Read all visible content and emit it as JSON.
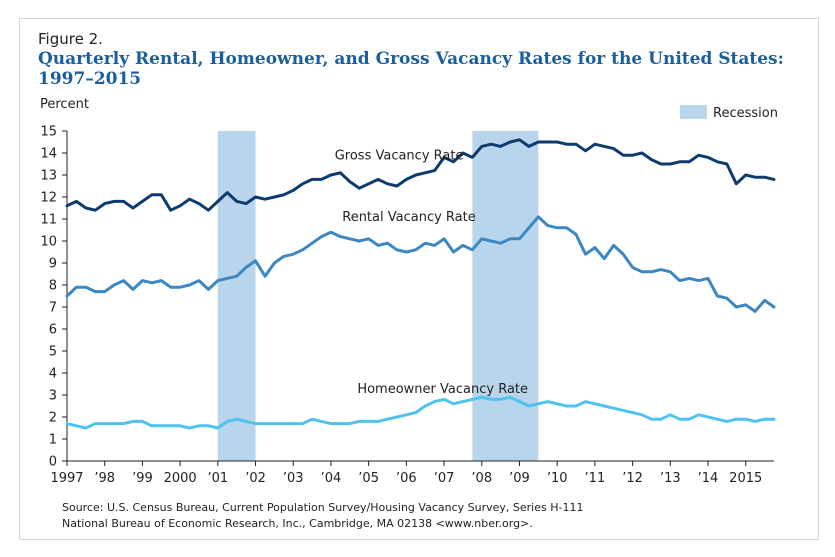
{
  "figure_label": "Figure 2.",
  "title_line1": "Quarterly Rental, Homeowner, and Gross Vacancy Rates for the United States:",
  "title_line2": "1997–2015",
  "source_line1": "Source: U.S. Census Bureau, Current Population Survey/Housing Vacancy Survey, Series H-111",
  "source_line2": "National Bureau of Economic Research, Inc., Cambridge, MA 02138 <www.nber.org>.",
  "colors": {
    "gross": "#0d3b6e",
    "rental": "#3b87c4",
    "homeowner": "#4fc3ee",
    "recession": "#b9d5ec"
  },
  "chart_data": {
    "type": "line",
    "ylabel": "Percent",
    "ylim": [
      0,
      15
    ],
    "yticks": [
      0,
      1,
      2,
      3,
      4,
      5,
      6,
      7,
      8,
      9,
      10,
      11,
      12,
      13,
      14,
      15
    ],
    "xlim": [
      1997,
      2015.75
    ],
    "xtick_labels": [
      {
        "x": 1997,
        "label": "1997"
      },
      {
        "x": 1998,
        "label": "’98"
      },
      {
        "x": 1999,
        "label": "’99"
      },
      {
        "x": 2000,
        "label": "2000"
      },
      {
        "x": 2001,
        "label": "’01"
      },
      {
        "x": 2002,
        "label": "’02"
      },
      {
        "x": 2003,
        "label": "’03"
      },
      {
        "x": 2004,
        "label": "’04"
      },
      {
        "x": 2005,
        "label": "’05"
      },
      {
        "x": 2006,
        "label": "’06"
      },
      {
        "x": 2007,
        "label": "’07"
      },
      {
        "x": 2008,
        "label": "’08"
      },
      {
        "x": 2009,
        "label": "’09"
      },
      {
        "x": 2010,
        "label": "’10"
      },
      {
        "x": 2011,
        "label": "’11"
      },
      {
        "x": 2012,
        "label": "’12"
      },
      {
        "x": 2013,
        "label": "’13"
      },
      {
        "x": 2014,
        "label": "’14"
      },
      {
        "x": 2015,
        "label": "2015"
      }
    ],
    "legend": {
      "label": "Recession",
      "placement": "top-right"
    },
    "recessions": [
      [
        2001.0,
        2002.0
      ],
      [
        2007.75,
        2009.5
      ]
    ],
    "series": [
      {
        "key": "gross",
        "name": "Gross Vacancy Rate",
        "label_at": {
          "x": 2004.1,
          "y": 13.7
        },
        "values": [
          11.6,
          11.8,
          11.5,
          11.4,
          11.7,
          11.8,
          11.8,
          11.5,
          11.8,
          12.1,
          12.1,
          11.4,
          11.6,
          11.9,
          11.7,
          11.4,
          11.8,
          12.2,
          11.8,
          11.7,
          12.0,
          11.9,
          12.0,
          12.1,
          12.3,
          12.6,
          12.8,
          12.8,
          13.0,
          13.1,
          12.7,
          12.4,
          12.6,
          12.8,
          12.6,
          12.5,
          12.8,
          13.0,
          13.1,
          13.2,
          13.8,
          13.6,
          14.0,
          13.8,
          14.3,
          14.4,
          14.3,
          14.5,
          14.6,
          14.3,
          14.5,
          14.5,
          14.5,
          14.4,
          14.4,
          14.1,
          14.4,
          14.3,
          14.2,
          13.9,
          13.9,
          14.0,
          13.7,
          13.5,
          13.5,
          13.6,
          13.6,
          13.9,
          13.8,
          13.6,
          13.5,
          12.6,
          13.0,
          12.9,
          12.9,
          12.8
        ]
      },
      {
        "key": "rental",
        "name": "Rental Vacancy Rate",
        "label_at": {
          "x": 2004.3,
          "y": 10.9
        },
        "values": [
          7.5,
          7.9,
          7.9,
          7.7,
          7.7,
          8.0,
          8.2,
          7.8,
          8.2,
          8.1,
          8.2,
          7.9,
          7.9,
          8.0,
          8.2,
          7.8,
          8.2,
          8.3,
          8.4,
          8.8,
          9.1,
          8.4,
          9.0,
          9.3,
          9.4,
          9.6,
          9.9,
          10.2,
          10.4,
          10.2,
          10.1,
          10.0,
          10.1,
          9.8,
          9.9,
          9.6,
          9.5,
          9.6,
          9.9,
          9.8,
          10.1,
          9.5,
          9.8,
          9.6,
          10.1,
          10.0,
          9.9,
          10.1,
          10.1,
          10.6,
          11.1,
          10.7,
          10.6,
          10.6,
          10.3,
          9.4,
          9.7,
          9.2,
          9.8,
          9.4,
          8.8,
          8.6,
          8.6,
          8.7,
          8.6,
          8.2,
          8.3,
          8.2,
          8.3,
          7.5,
          7.4,
          7.0,
          7.1,
          6.8,
          7.3,
          7.0
        ]
      },
      {
        "key": "homeowner",
        "name": "Homeowner Vacancy Rate",
        "label_at": {
          "x": 2004.7,
          "y": 3.1
        },
        "values": [
          1.7,
          1.6,
          1.5,
          1.7,
          1.7,
          1.7,
          1.7,
          1.8,
          1.8,
          1.6,
          1.6,
          1.6,
          1.6,
          1.5,
          1.6,
          1.6,
          1.5,
          1.8,
          1.9,
          1.8,
          1.7,
          1.7,
          1.7,
          1.7,
          1.7,
          1.7,
          1.9,
          1.8,
          1.7,
          1.7,
          1.7,
          1.8,
          1.8,
          1.8,
          1.9,
          2.0,
          2.1,
          2.2,
          2.5,
          2.7,
          2.8,
          2.6,
          2.7,
          2.8,
          2.9,
          2.8,
          2.8,
          2.9,
          2.7,
          2.5,
          2.6,
          2.7,
          2.6,
          2.5,
          2.5,
          2.7,
          2.6,
          2.5,
          2.4,
          2.3,
          2.2,
          2.1,
          1.9,
          1.9,
          2.1,
          1.9,
          1.9,
          2.1,
          2.0,
          1.9,
          1.8,
          1.9,
          1.9,
          1.8,
          1.9,
          1.9
        ]
      }
    ]
  }
}
